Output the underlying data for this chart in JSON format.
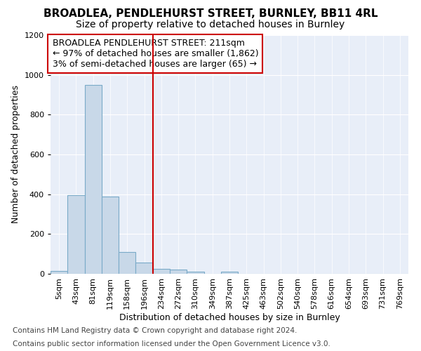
{
  "title": "BROADLEA, PENDLEHURST STREET, BURNLEY, BB11 4RL",
  "subtitle": "Size of property relative to detached houses in Burnley",
  "xlabel": "Distribution of detached houses by size in Burnley",
  "ylabel": "Number of detached properties",
  "annotation_line1": "BROADLEA PENDLEHURST STREET: 211sqm",
  "annotation_line2": "← 97% of detached houses are smaller (1,862)",
  "annotation_line3": "3% of semi-detached houses are larger (65) →",
  "footnote1": "Contains HM Land Registry data © Crown copyright and database right 2024.",
  "footnote2": "Contains public sector information licensed under the Open Government Licence v3.0.",
  "categories": [
    "5sqm",
    "43sqm",
    "81sqm",
    "119sqm",
    "158sqm",
    "196sqm",
    "234sqm",
    "272sqm",
    "310sqm",
    "349sqm",
    "387sqm",
    "425sqm",
    "463sqm",
    "502sqm",
    "540sqm",
    "578sqm",
    "616sqm",
    "654sqm",
    "693sqm",
    "731sqm",
    "769sqm"
  ],
  "values": [
    15,
    395,
    950,
    390,
    110,
    55,
    25,
    20,
    12,
    0,
    12,
    0,
    0,
    0,
    0,
    0,
    0,
    0,
    0,
    0,
    0
  ],
  "bar_color": "#c8d8e8",
  "bar_edge_color": "#7aaac8",
  "red_line_x": 5.5,
  "red_line_color": "#cc0000",
  "ylim": [
    0,
    1200
  ],
  "yticks": [
    0,
    200,
    400,
    600,
    800,
    1000,
    1200
  ],
  "bg_color": "#ffffff",
  "plot_bg_color": "#e8eef8",
  "annotation_box_color": "#ffffff",
  "annotation_box_edge": "#cc0000",
  "title_fontsize": 11,
  "subtitle_fontsize": 10,
  "axis_label_fontsize": 9,
  "tick_fontsize": 8,
  "annotation_fontsize": 9,
  "footnote_fontsize": 7.5
}
